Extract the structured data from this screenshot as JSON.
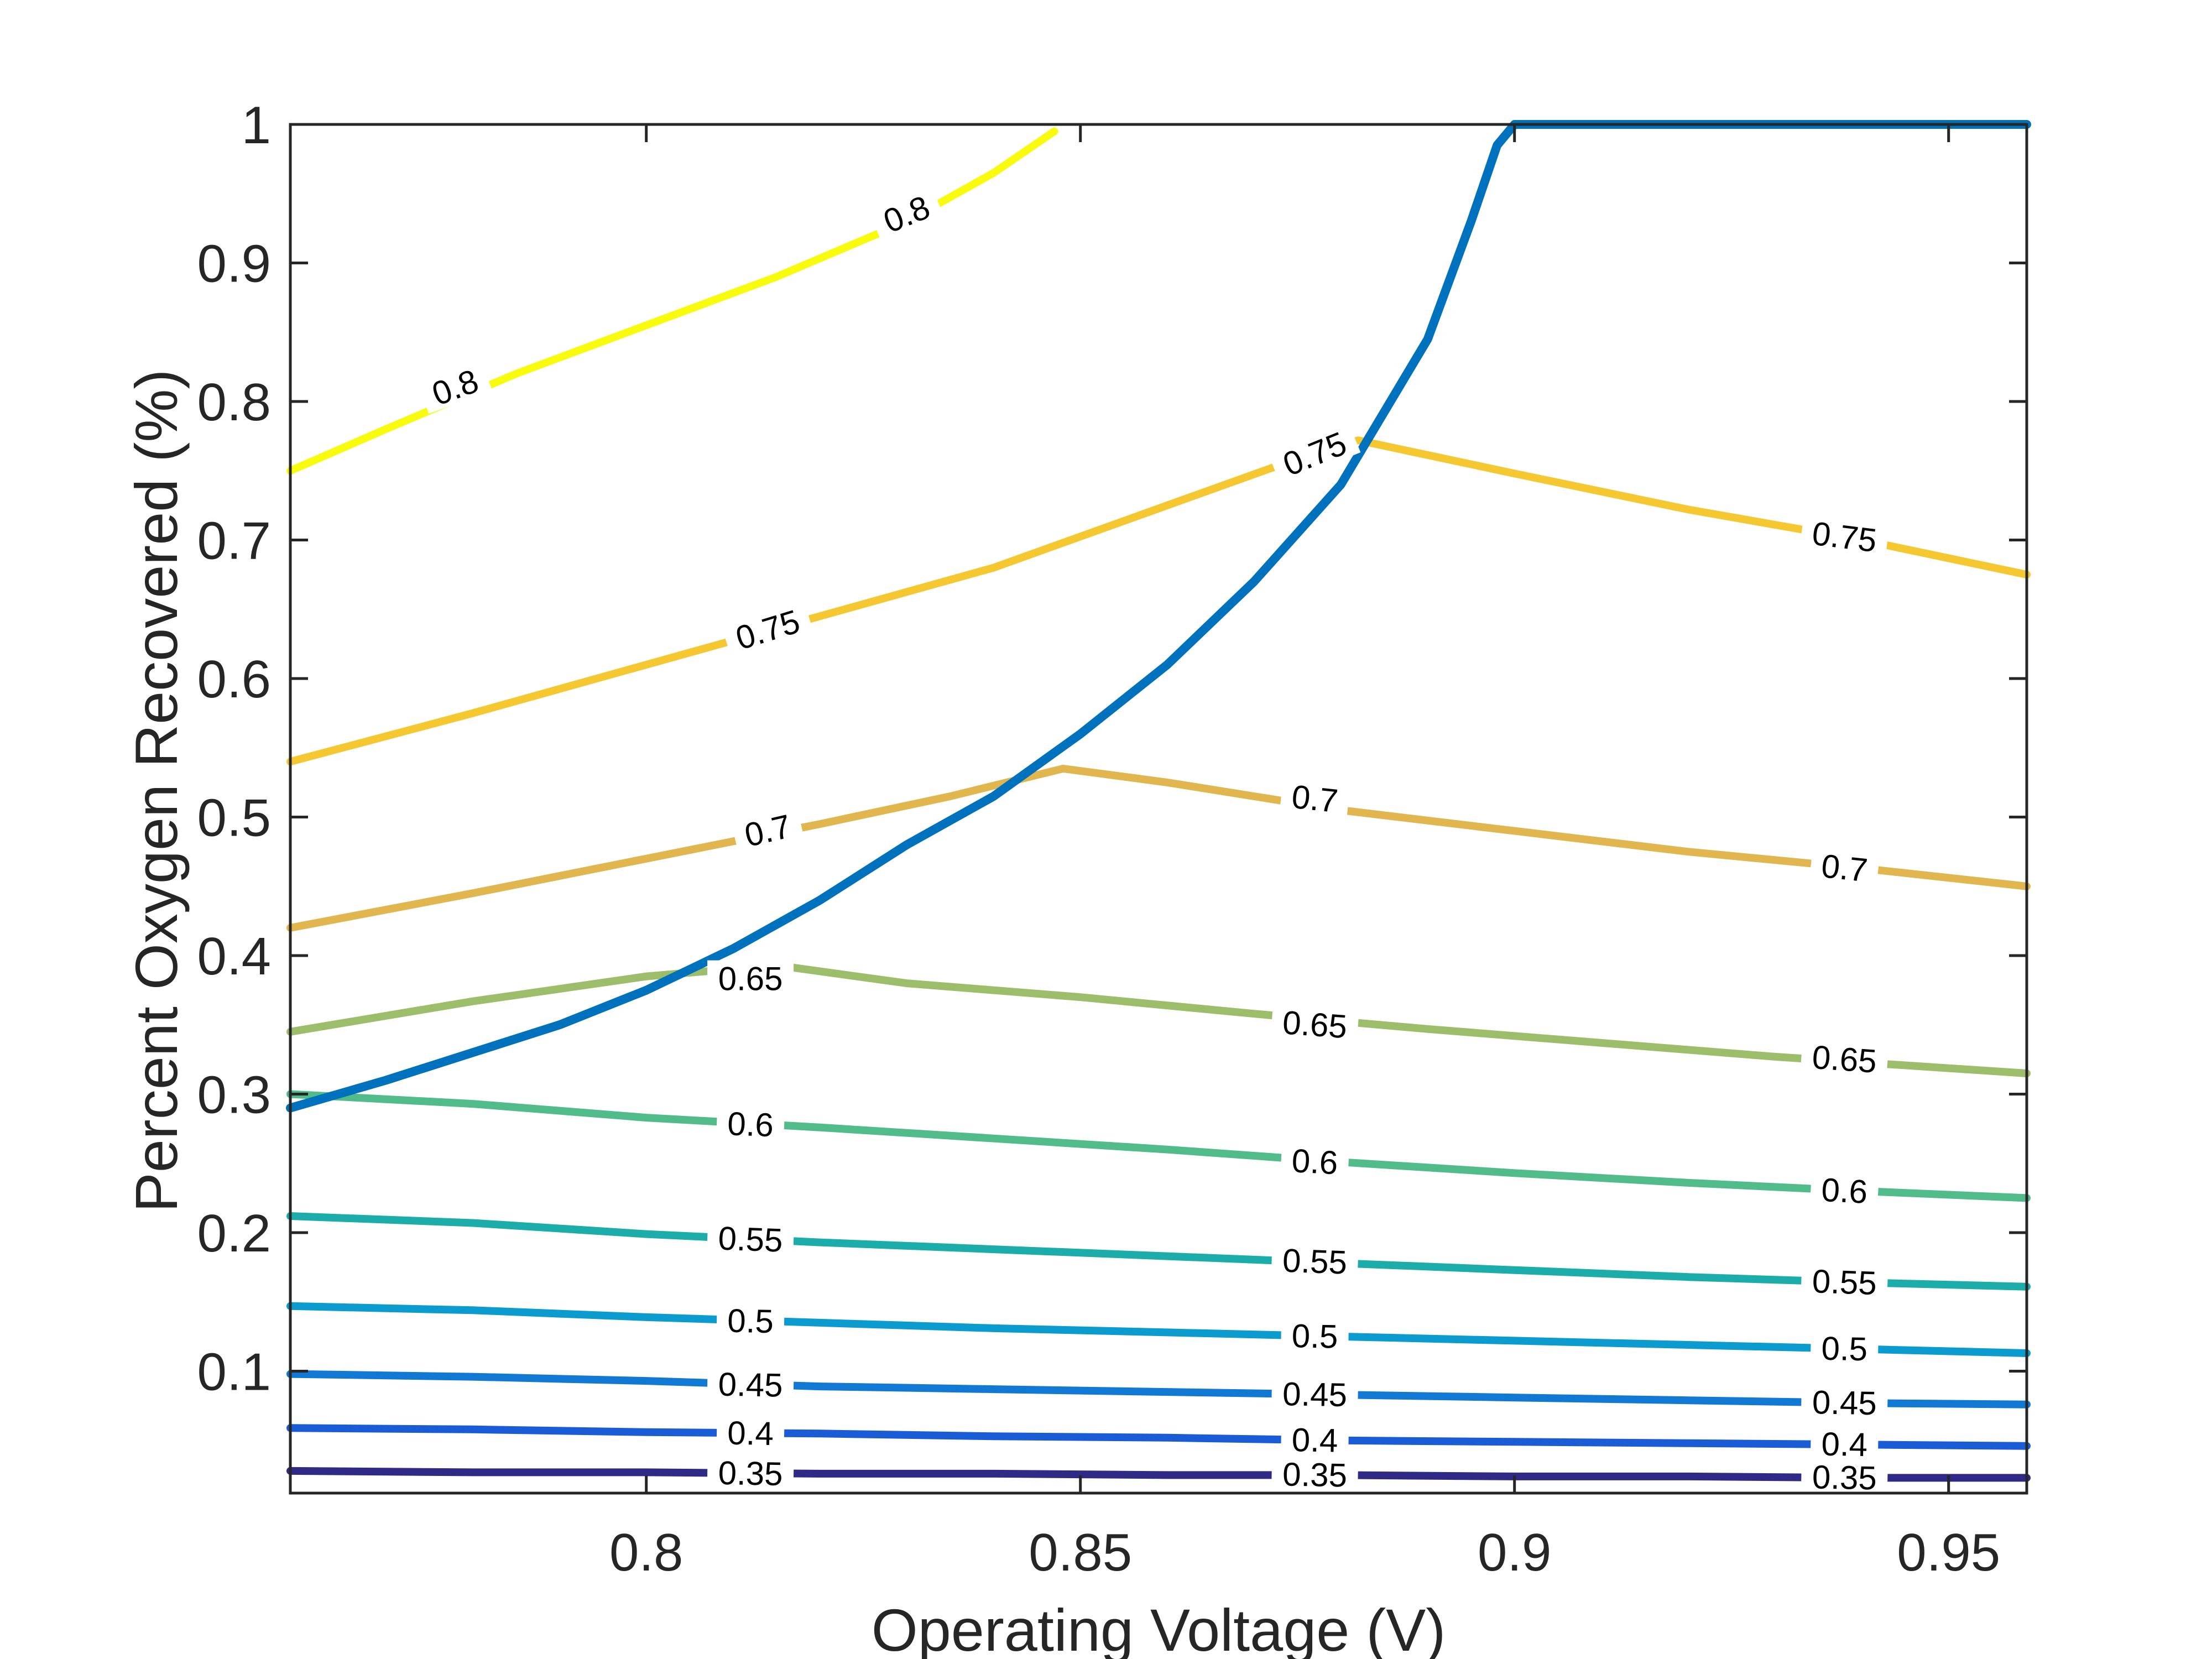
{
  "chart_data": {
    "type": "contour",
    "title": "",
    "xlabel": "Operating Voltage (V)",
    "ylabel": "Percent Oxygen Recovered (%)",
    "xlim": [
      0.759,
      0.959
    ],
    "ylim": [
      0.012,
      1.0
    ],
    "xticks": [
      0.8,
      0.85,
      0.9,
      0.95
    ],
    "xtick_labels": [
      "0.8",
      "0.85",
      "0.9",
      "0.95"
    ],
    "yticks": [
      0.1,
      0.2,
      0.3,
      0.4,
      0.5,
      0.6,
      0.7,
      0.8,
      0.9,
      1.0
    ],
    "ytick_labels": [
      "0.1",
      "0.2",
      "0.3",
      "0.4",
      "0.5",
      "0.6",
      "0.7",
      "0.8",
      "0.9",
      "1"
    ],
    "grid": false,
    "contours": [
      {
        "level": "0.8",
        "color": "#f9fb0e",
        "points": [
          [
            0.759,
            0.75
          ],
          [
            0.77,
            0.78
          ],
          [
            0.785,
            0.82
          ],
          [
            0.8,
            0.855
          ],
          [
            0.815,
            0.89
          ],
          [
            0.83,
            0.93
          ],
          [
            0.84,
            0.965
          ],
          [
            0.847,
            0.995
          ]
        ],
        "labels": [
          [
            0.778,
            0.81,
            -20
          ],
          [
            0.83,
            0.935,
            -22
          ]
        ]
      },
      {
        "level": "0.75",
        "color": "#f5c832",
        "points": [
          [
            0.759,
            0.54
          ],
          [
            0.78,
            0.575
          ],
          [
            0.8,
            0.61
          ],
          [
            0.82,
            0.645
          ],
          [
            0.84,
            0.68
          ],
          [
            0.86,
            0.725
          ],
          [
            0.872,
            0.752
          ],
          [
            0.882,
            0.772
          ],
          [
            0.9,
            0.748
          ],
          [
            0.92,
            0.722
          ],
          [
            0.94,
            0.7
          ],
          [
            0.959,
            0.675
          ]
        ],
        "labels": [
          [
            0.814,
            0.635,
            -17
          ],
          [
            0.877,
            0.762,
            -22
          ],
          [
            0.938,
            0.702,
            7
          ]
        ]
      },
      {
        "level": "0.7",
        "color": "#e1b64e",
        "points": [
          [
            0.759,
            0.42
          ],
          [
            0.78,
            0.445
          ],
          [
            0.8,
            0.47
          ],
          [
            0.82,
            0.495
          ],
          [
            0.835,
            0.515
          ],
          [
            0.848,
            0.535
          ],
          [
            0.86,
            0.525
          ],
          [
            0.88,
            0.505
          ],
          [
            0.9,
            0.49
          ],
          [
            0.92,
            0.475
          ],
          [
            0.94,
            0.463
          ],
          [
            0.959,
            0.45
          ]
        ],
        "labels": [
          [
            0.814,
            0.49,
            -13
          ],
          [
            0.877,
            0.513,
            6
          ],
          [
            0.938,
            0.463,
            6
          ]
        ]
      },
      {
        "level": "0.65",
        "color": "#9cbe6a",
        "points": [
          [
            0.759,
            0.345
          ],
          [
            0.78,
            0.367
          ],
          [
            0.8,
            0.385
          ],
          [
            0.815,
            0.393
          ],
          [
            0.83,
            0.38
          ],
          [
            0.85,
            0.37
          ],
          [
            0.87,
            0.358
          ],
          [
            0.89,
            0.347
          ],
          [
            0.91,
            0.337
          ],
          [
            0.93,
            0.327
          ],
          [
            0.959,
            0.315
          ]
        ],
        "labels": [
          [
            0.812,
            0.383,
            0
          ],
          [
            0.877,
            0.35,
            4
          ],
          [
            0.938,
            0.325,
            4
          ]
        ]
      },
      {
        "level": "0.6",
        "color": "#52bb8a",
        "points": [
          [
            0.759,
            0.3
          ],
          [
            0.78,
            0.293
          ],
          [
            0.8,
            0.283
          ],
          [
            0.82,
            0.276
          ],
          [
            0.84,
            0.268
          ],
          [
            0.86,
            0.26
          ],
          [
            0.88,
            0.251
          ],
          [
            0.9,
            0.243
          ],
          [
            0.92,
            0.236
          ],
          [
            0.94,
            0.23
          ],
          [
            0.959,
            0.225
          ]
        ],
        "labels": [
          [
            0.812,
            0.278,
            2
          ],
          [
            0.877,
            0.251,
            3
          ],
          [
            0.938,
            0.23,
            3
          ]
        ]
      },
      {
        "level": "0.55",
        "color": "#1cadab",
        "points": [
          [
            0.759,
            0.212
          ],
          [
            0.78,
            0.207
          ],
          [
            0.8,
            0.199
          ],
          [
            0.82,
            0.193
          ],
          [
            0.84,
            0.188
          ],
          [
            0.86,
            0.183
          ],
          [
            0.88,
            0.178
          ],
          [
            0.9,
            0.173
          ],
          [
            0.92,
            0.168
          ],
          [
            0.94,
            0.164
          ],
          [
            0.959,
            0.161
          ]
        ],
        "labels": [
          [
            0.812,
            0.195,
            2
          ],
          [
            0.877,
            0.179,
            2
          ],
          [
            0.938,
            0.164,
            2
          ]
        ]
      },
      {
        "level": "0.5",
        "color": "#0b9bcf",
        "points": [
          [
            0.759,
            0.147
          ],
          [
            0.78,
            0.144
          ],
          [
            0.8,
            0.139
          ],
          [
            0.82,
            0.135
          ],
          [
            0.84,
            0.131
          ],
          [
            0.86,
            0.128
          ],
          [
            0.88,
            0.125
          ],
          [
            0.9,
            0.122
          ],
          [
            0.92,
            0.119
          ],
          [
            0.94,
            0.116
          ],
          [
            0.959,
            0.113
          ]
        ],
        "labels": [
          [
            0.812,
            0.136,
            1
          ],
          [
            0.877,
            0.125,
            1
          ],
          [
            0.938,
            0.116,
            1
          ]
        ]
      },
      {
        "level": "0.45",
        "color": "#1178d3",
        "points": [
          [
            0.759,
            0.098
          ],
          [
            0.78,
            0.096
          ],
          [
            0.8,
            0.093
          ],
          [
            0.82,
            0.089
          ],
          [
            0.84,
            0.087
          ],
          [
            0.86,
            0.085
          ],
          [
            0.88,
            0.083
          ],
          [
            0.9,
            0.081
          ],
          [
            0.92,
            0.079
          ],
          [
            0.94,
            0.077
          ],
          [
            0.959,
            0.076
          ]
        ],
        "labels": [
          [
            0.812,
            0.09,
            1
          ],
          [
            0.877,
            0.083,
            1
          ],
          [
            0.938,
            0.077,
            1
          ]
        ]
      },
      {
        "level": "0.4",
        "color": "#1a5bd6",
        "points": [
          [
            0.759,
            0.059
          ],
          [
            0.78,
            0.058
          ],
          [
            0.8,
            0.056
          ],
          [
            0.82,
            0.055
          ],
          [
            0.84,
            0.053
          ],
          [
            0.86,
            0.052
          ],
          [
            0.88,
            0.05
          ],
          [
            0.9,
            0.049
          ],
          [
            0.92,
            0.048
          ],
          [
            0.94,
            0.047
          ],
          [
            0.959,
            0.046
          ]
        ],
        "labels": [
          [
            0.812,
            0.055,
            1
          ],
          [
            0.877,
            0.05,
            1
          ],
          [
            0.938,
            0.047,
            1
          ]
        ]
      },
      {
        "level": "0.35",
        "color": "#2f2a86",
        "points": [
          [
            0.759,
            0.028
          ],
          [
            0.78,
            0.027
          ],
          [
            0.8,
            0.027
          ],
          [
            0.82,
            0.026
          ],
          [
            0.84,
            0.026
          ],
          [
            0.86,
            0.025
          ],
          [
            0.88,
            0.025
          ],
          [
            0.9,
            0.024
          ],
          [
            0.92,
            0.024
          ],
          [
            0.94,
            0.023
          ],
          [
            0.959,
            0.023
          ]
        ],
        "labels": [
          [
            0.812,
            0.026,
            1
          ],
          [
            0.877,
            0.025,
            1
          ],
          [
            0.938,
            0.023,
            1
          ]
        ]
      }
    ],
    "boundary": {
      "color": "#0072bd",
      "points": [
        [
          0.759,
          0.29
        ],
        [
          0.77,
          0.31
        ],
        [
          0.78,
          0.33
        ],
        [
          0.79,
          0.35
        ],
        [
          0.8,
          0.375
        ],
        [
          0.81,
          0.405
        ],
        [
          0.82,
          0.44
        ],
        [
          0.83,
          0.48
        ],
        [
          0.84,
          0.515
        ],
        [
          0.85,
          0.56
        ],
        [
          0.86,
          0.61
        ],
        [
          0.87,
          0.67
        ],
        [
          0.88,
          0.74
        ],
        [
          0.89,
          0.845
        ],
        [
          0.895,
          0.93
        ],
        [
          0.898,
          0.985
        ],
        [
          0.9,
          1.0
        ],
        [
          0.959,
          1.0
        ]
      ]
    }
  }
}
